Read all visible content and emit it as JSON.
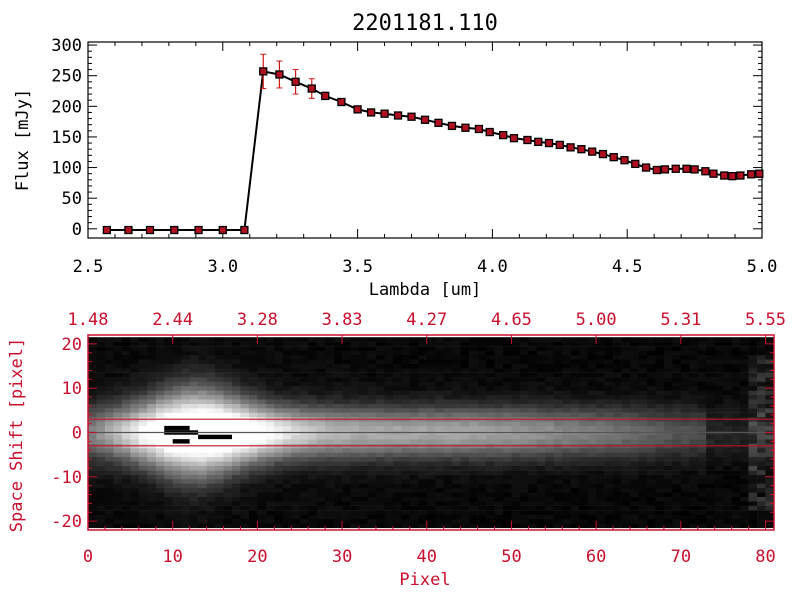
{
  "chart_data": [
    {
      "type": "line",
      "title": "2201181.110",
      "xlabel": "Lambda [um]",
      "ylabel": "Flux [mJy]",
      "xlim": [
        2.5,
        5.0
      ],
      "ylim": [
        -15,
        305
      ],
      "x_ticks": [
        "2.5",
        "3.0",
        "3.5",
        "4.0",
        "4.5",
        "5.0"
      ],
      "y_ticks": [
        "0",
        "50",
        "100",
        "150",
        "200",
        "250",
        "300"
      ],
      "grid": false,
      "series": [
        {
          "marker": "square",
          "line_color": "#000000",
          "marker_color": "#b01020",
          "error_color": "#d01818",
          "x": [
            2.57,
            2.65,
            2.73,
            2.82,
            2.91,
            3.0,
            3.08,
            3.15,
            3.21,
            3.27,
            3.33,
            3.38,
            3.44,
            3.5,
            3.55,
            3.6,
            3.65,
            3.7,
            3.75,
            3.8,
            3.85,
            3.9,
            3.95,
            3.99,
            4.04,
            4.08,
            4.13,
            4.17,
            4.21,
            4.25,
            4.29,
            4.33,
            4.37,
            4.41,
            4.45,
            4.49,
            4.53,
            4.57,
            4.61,
            4.64,
            4.68,
            4.72,
            4.75,
            4.79,
            4.82,
            4.86,
            4.89,
            4.92,
            4.96,
            4.99
          ],
          "y": [
            -2,
            -2,
            -2,
            -2,
            -2,
            -2,
            -2,
            257,
            252,
            240,
            229,
            217,
            207,
            195,
            190,
            188,
            185,
            183,
            178,
            173,
            168,
            165,
            163,
            158,
            153,
            148,
            145,
            142,
            140,
            137,
            133,
            130,
            126,
            122,
            117,
            112,
            106,
            100,
            96,
            97,
            98,
            98,
            97,
            94,
            90,
            87,
            86,
            87,
            89,
            90
          ],
          "err": [
            0,
            0,
            0,
            0,
            0,
            0,
            0,
            28,
            22,
            20,
            16,
            6,
            5,
            4,
            3,
            3,
            3,
            3,
            3,
            3,
            3,
            3,
            3,
            3,
            3,
            3,
            3,
            3,
            3,
            3,
            3,
            3,
            3,
            3,
            3,
            3,
            3,
            3,
            3,
            3,
            3,
            3,
            3,
            3,
            3,
            3,
            3,
            3,
            4,
            6
          ]
        }
      ]
    },
    {
      "type": "heatmap",
      "xlabel": "Pixel",
      "ylabel": "Space Shift [pixel]",
      "xlim": [
        0,
        81
      ],
      "ylim": [
        -22,
        22
      ],
      "x_ticks": [
        "0",
        "10",
        "20",
        "30",
        "40",
        "50",
        "60",
        "70",
        "80"
      ],
      "y_ticks": [
        "-20",
        "-10",
        "0",
        "10",
        "20"
      ],
      "top_axis_ticks": [
        "1.48",
        "2.44",
        "3.28",
        "3.83",
        "4.27",
        "4.65",
        "5.00",
        "5.31",
        "5.55"
      ],
      "grid": false,
      "colormap": "grayscale",
      "axis_color": "#c8102e",
      "guide_lines": {
        "y": [
          3,
          0,
          -3
        ],
        "colors": [
          "#c8102e",
          "#555555",
          "#c8102e"
        ]
      }
    }
  ]
}
